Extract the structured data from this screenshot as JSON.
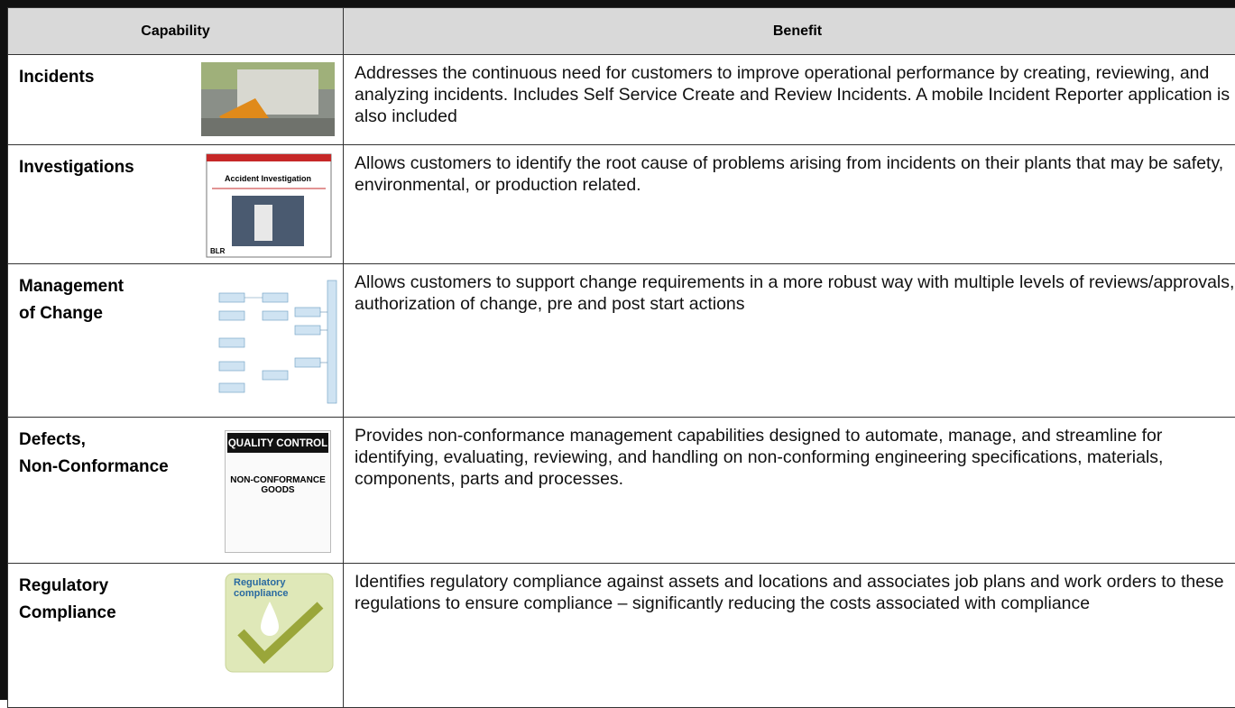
{
  "table": {
    "header": [
      "Capability",
      "Benefit"
    ],
    "rows": [
      [
        "Incidents",
        "Addresses the continuous need for customers to improve operational performance by creating, reviewing, and analyzing incidents.  Includes Self Service Create and Review Incidents. A mobile Incident Reporter application is also included"
      ],
      [
        "Investigations",
        "Allows customers to identify the root cause of problems arising from incidents on their plants that may be safety, environmental, or production related."
      ],
      [
        "Management\nof Change",
        "Allows customers to support change requirements in a more robust way with multiple levels of reviews/approvals, authorization of change, pre and post start actions"
      ],
      [
        "Defects,\nNon-Conformance",
        "Provides non-conformance management capabilities designed to automate, manage, and streamline for identifying, evaluating, reviewing, and handling on non-conforming engineering specifications, materials, components, parts and processes."
      ],
      [
        "Regulatory\nCompliance",
        "Identifies regulatory compliance against assets and locations and associates job plans and work orders to these regulations to ensure compliance – significantly reducing the costs associated with compliance"
      ]
    ]
  },
  "images": {
    "investigation_title": "Accident Investigation",
    "investigation_logo": "BLR",
    "quality_banner": "QUALITY CONTROL",
    "quality_text": "NON-CONFORMANCE\nGOODS",
    "regulatory_text": "Regulatory\ncompliance"
  }
}
